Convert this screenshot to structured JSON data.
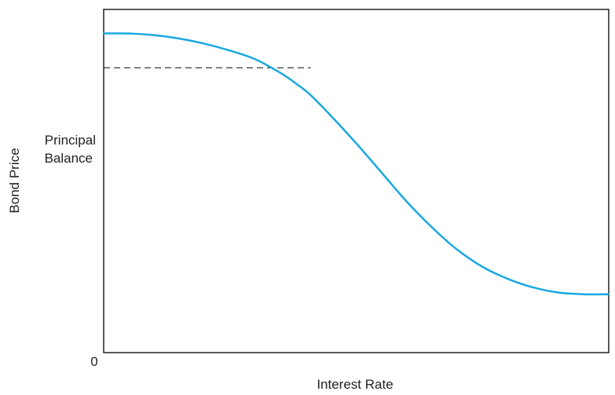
{
  "chart_data": {
    "type": "line",
    "title": "",
    "xlabel": "Interest Rate",
    "ylabel": "Bond Price",
    "xlim": [
      0,
      100
    ],
    "ylim": [
      0,
      100
    ],
    "y_tick_labels": [
      "0"
    ],
    "grid": false,
    "legend": "none",
    "reference_line": {
      "label_line1": "Principal",
      "label_line2": "Balance",
      "y": 83,
      "x_end": 41,
      "style": "dashed",
      "color": "#222222"
    },
    "series": [
      {
        "color": "#1aa8e0",
        "x": [
          0,
          5,
          10,
          15,
          20,
          25,
          30,
          35,
          38,
          41,
          45,
          50,
          55,
          60,
          65,
          70,
          75,
          80,
          85,
          90,
          95,
          100
        ],
        "y": [
          93,
          93,
          92.5,
          91.5,
          90,
          88,
          85.5,
          81.5,
          78.5,
          75,
          69,
          61,
          52.5,
          44,
          36.5,
          30,
          25,
          21.5,
          19,
          17.5,
          17,
          17
        ]
      }
    ]
  }
}
